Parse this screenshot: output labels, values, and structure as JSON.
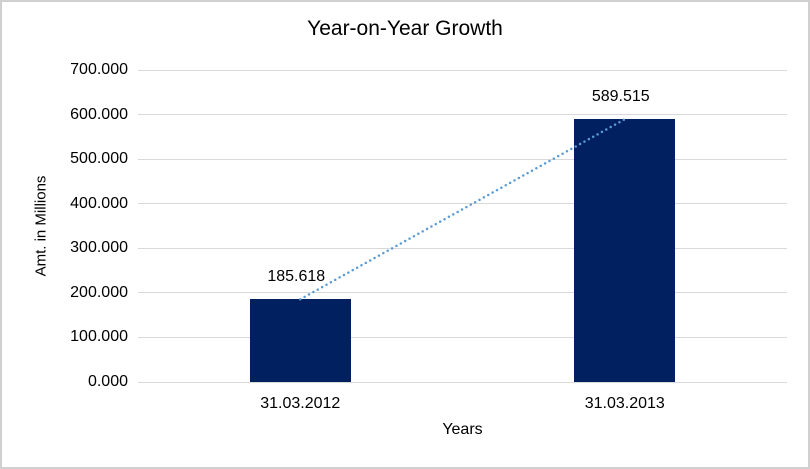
{
  "chart_data": {
    "type": "bar",
    "title": "Year-on-Year Growth",
    "xlabel": "Years",
    "ylabel": "Amt. in Millions",
    "categories": [
      "31.03.2012",
      "31.03.2013"
    ],
    "values": [
      185.618,
      589.515
    ],
    "data_labels": [
      "185.618",
      "589.515"
    ],
    "ylim": [
      0,
      700
    ],
    "ytick_step": 100,
    "ytick_labels": [
      "0.000",
      "100.000",
      "200.000",
      "300.000",
      "400.000",
      "500.000",
      "600.000",
      "700.000"
    ],
    "grid": "horizontal",
    "legend": "none",
    "bar_color": "#002060",
    "gridline_color": "#d9d9d9",
    "text_color": "#000000",
    "trendline": {
      "type": "linear",
      "style": "dotted",
      "color": "#5b9bd5",
      "from": {
        "category": "31.03.2012",
        "value": 185.618
      },
      "to": {
        "category": "31.03.2013",
        "value": 589.515
      }
    }
  }
}
